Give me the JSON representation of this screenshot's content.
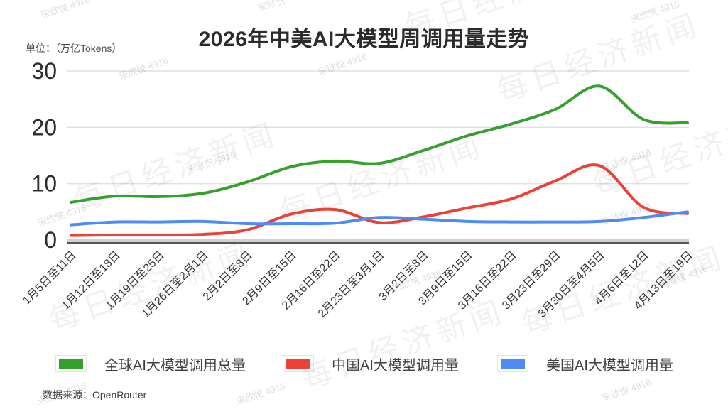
{
  "header": {
    "title": "2026年中美AI大模型周调用量走势",
    "unit_label": "单位：（万亿Tokens）"
  },
  "footer": {
    "source": "数据来源：OpenRouter"
  },
  "watermarks": {
    "brand": "每日经济新闻",
    "user": "宋欣悦 4916"
  },
  "colors": {
    "global": "#34a12c",
    "china": "#ee4037",
    "usa": "#4d8bf5",
    "grid": "#e0e0e0",
    "zero_grid": "#c2c2c2",
    "axis": "#555555",
    "title_text": "#2b2b2b",
    "y_tick_text": "#2d2d2d",
    "x_tick_text": "#333333",
    "background": "#ffffff"
  },
  "chart_data": {
    "type": "line",
    "title": "2026年中美AI大模型周调用量走势",
    "unit": "万亿Tokens",
    "ylabel": "单位：（万亿Tokens）",
    "xlabel": "",
    "ylim": [
      0,
      30
    ],
    "y_ticks": [
      0,
      10,
      20,
      30
    ],
    "grid": true,
    "legend_position": "bottom",
    "categories": [
      "1月5日至11日",
      "1月12日至18日",
      "1月19日至25日",
      "1月26日至2月1日",
      "2月2日至8日",
      "2月9日至15日",
      "2月16日至22日",
      "2月23日至3月1日",
      "3月2日至8日",
      "3月9日至15日",
      "3月16日至22日",
      "3月23日至29日",
      "3月30日至4月5日",
      "4月6日至12日",
      "4月13日至19日"
    ],
    "series": [
      {
        "name": "全球AI大模型调用总量",
        "color": "#34a12c",
        "values": [
          6.7,
          7.8,
          7.7,
          8.3,
          10.3,
          13.0,
          14.0,
          13.6,
          15.9,
          18.5,
          20.6,
          23.2,
          27.3,
          21.4,
          20.8
        ]
      },
      {
        "name": "中国AI大模型调用量",
        "color": "#ee4037",
        "values": [
          0.8,
          0.9,
          0.9,
          1.0,
          1.8,
          4.6,
          5.4,
          3.1,
          4.1,
          5.7,
          7.3,
          10.5,
          13.2,
          5.8,
          4.7
        ]
      },
      {
        "name": "美国AI大模型调用量",
        "color": "#4d8bf5",
        "values": [
          2.7,
          3.2,
          3.2,
          3.3,
          2.9,
          2.9,
          3.0,
          4.0,
          3.7,
          3.3,
          3.2,
          3.2,
          3.3,
          4.0,
          5.0
        ]
      }
    ]
  }
}
